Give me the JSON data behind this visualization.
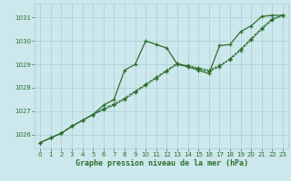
{
  "title": "Graphe pression niveau de la mer (hPa)",
  "bg_color": "#cce8ec",
  "grid_color": "#aaccd4",
  "line_color": "#2d6e2d",
  "xlim": [
    -0.5,
    23.5
  ],
  "ylim": [
    1025.4,
    1031.6
  ],
  "yticks": [
    1026,
    1027,
    1028,
    1029,
    1030,
    1031
  ],
  "xticks": [
    0,
    1,
    2,
    3,
    4,
    5,
    6,
    7,
    8,
    9,
    10,
    11,
    12,
    13,
    14,
    15,
    16,
    17,
    18,
    19,
    20,
    21,
    22,
    23
  ],
  "line1_x": [
    0,
    1,
    2,
    3,
    4,
    5,
    6,
    7,
    8,
    9,
    10,
    11,
    12,
    13,
    14,
    15,
    16,
    17,
    18,
    19,
    20,
    21,
    22,
    23
  ],
  "line1_y": [
    1025.65,
    1025.85,
    1026.05,
    1026.35,
    1026.6,
    1026.85,
    1027.25,
    1027.5,
    1028.75,
    1029.0,
    1030.0,
    1029.85,
    1029.7,
    1029.0,
    1028.9,
    1028.75,
    1028.6,
    1029.8,
    1029.85,
    1030.4,
    1030.65,
    1031.05,
    1031.1,
    1031.1
  ],
  "line2_x": [
    0,
    1,
    2,
    3,
    4,
    5,
    6,
    7,
    8,
    9,
    10,
    11,
    12,
    13,
    14,
    15,
    16,
    17,
    18,
    19,
    20,
    21,
    22,
    23
  ],
  "line2_y": [
    1025.65,
    1025.85,
    1026.05,
    1026.35,
    1026.6,
    1026.85,
    1027.05,
    1027.25,
    1027.5,
    1027.8,
    1028.1,
    1028.4,
    1028.7,
    1029.0,
    1028.95,
    1028.85,
    1028.75,
    1028.95,
    1029.2,
    1029.6,
    1030.05,
    1030.5,
    1030.9,
    1031.1
  ],
  "line3_x": [
    0,
    1,
    2,
    3,
    4,
    5,
    6,
    7,
    8,
    9,
    10,
    11,
    12,
    13,
    14,
    15,
    16,
    17,
    18,
    19,
    20,
    21,
    22,
    23
  ],
  "line3_y": [
    1025.65,
    1025.85,
    1026.05,
    1026.35,
    1026.6,
    1026.85,
    1027.1,
    1027.3,
    1027.55,
    1027.85,
    1028.15,
    1028.45,
    1028.75,
    1029.05,
    1028.9,
    1028.8,
    1028.7,
    1028.9,
    1029.25,
    1029.65,
    1030.1,
    1030.55,
    1030.95,
    1031.1
  ]
}
